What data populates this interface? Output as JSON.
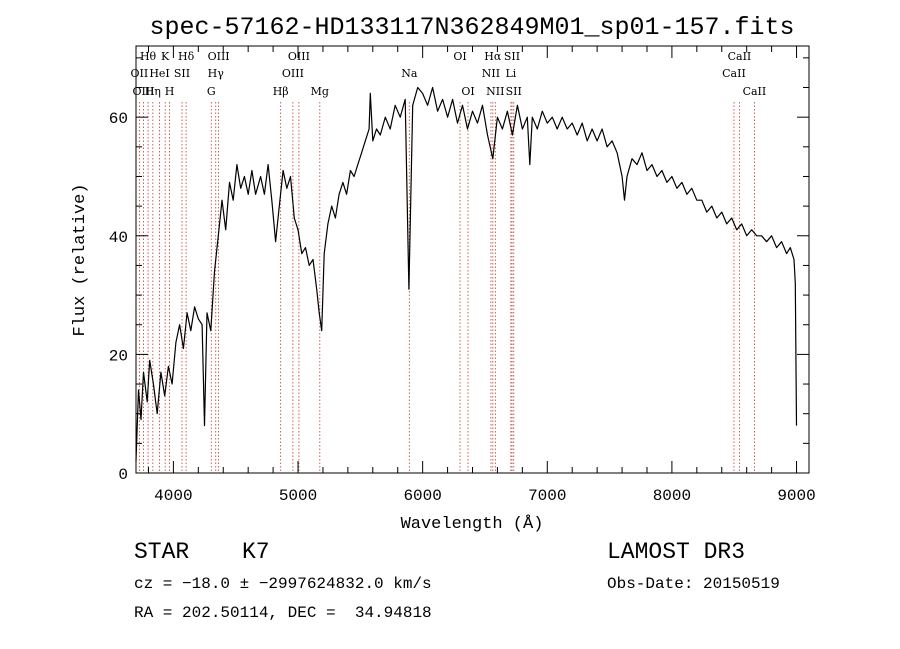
{
  "chart_data": {
    "type": "line",
    "title": "spec-57162-HD133117N362849M01_sp01-157.fits",
    "xlabel": "Wavelength (Å)",
    "ylabel": "Flux (relative)",
    "xlim": [
      3700,
      9100
    ],
    "ylim": [
      0,
      72
    ],
    "xticks": [
      4000,
      5000,
      6000,
      7000,
      8000,
      9000
    ],
    "yticks": [
      0,
      20,
      40,
      60
    ],
    "grid": false,
    "series": [
      {
        "points": [
          [
            3700,
            2
          ],
          [
            3720,
            14
          ],
          [
            3740,
            9
          ],
          [
            3760,
            17
          ],
          [
            3790,
            12
          ],
          [
            3810,
            19
          ],
          [
            3840,
            15
          ],
          [
            3870,
            10
          ],
          [
            3900,
            17
          ],
          [
            3930,
            13
          ],
          [
            3960,
            18
          ],
          [
            3990,
            15
          ],
          [
            4020,
            22
          ],
          [
            4050,
            25
          ],
          [
            4080,
            21
          ],
          [
            4110,
            27
          ],
          [
            4140,
            24
          ],
          [
            4170,
            28
          ],
          [
            4200,
            26
          ],
          [
            4230,
            25
          ],
          [
            4250,
            8
          ],
          [
            4270,
            27
          ],
          [
            4300,
            24
          ],
          [
            4330,
            34
          ],
          [
            4360,
            40
          ],
          [
            4390,
            46
          ],
          [
            4420,
            41
          ],
          [
            4450,
            49
          ],
          [
            4480,
            46
          ],
          [
            4510,
            52
          ],
          [
            4540,
            48
          ],
          [
            4570,
            50
          ],
          [
            4600,
            47
          ],
          [
            4630,
            51
          ],
          [
            4660,
            47
          ],
          [
            4700,
            50
          ],
          [
            4730,
            47
          ],
          [
            4760,
            52
          ],
          [
            4790,
            46
          ],
          [
            4820,
            39
          ],
          [
            4850,
            45
          ],
          [
            4880,
            51
          ],
          [
            4910,
            48
          ],
          [
            4940,
            50
          ],
          [
            4970,
            43
          ],
          [
            5000,
            41
          ],
          [
            5030,
            37
          ],
          [
            5060,
            38
          ],
          [
            5090,
            35
          ],
          [
            5120,
            36
          ],
          [
            5150,
            31
          ],
          [
            5170,
            27
          ],
          [
            5190,
            24
          ],
          [
            5210,
            37
          ],
          [
            5240,
            42
          ],
          [
            5270,
            45
          ],
          [
            5300,
            43
          ],
          [
            5330,
            47
          ],
          [
            5360,
            49
          ],
          [
            5390,
            47
          ],
          [
            5420,
            51
          ],
          [
            5450,
            50
          ],
          [
            5480,
            52
          ],
          [
            5510,
            54
          ],
          [
            5540,
            56
          ],
          [
            5570,
            58
          ],
          [
            5580,
            64
          ],
          [
            5600,
            56
          ],
          [
            5630,
            58
          ],
          [
            5660,
            57
          ],
          [
            5700,
            60
          ],
          [
            5740,
            58
          ],
          [
            5780,
            62
          ],
          [
            5820,
            60
          ],
          [
            5860,
            63
          ],
          [
            5890,
            31
          ],
          [
            5920,
            62
          ],
          [
            5960,
            65
          ],
          [
            6000,
            64
          ],
          [
            6040,
            62
          ],
          [
            6080,
            65
          ],
          [
            6120,
            61
          ],
          [
            6160,
            63
          ],
          [
            6200,
            60
          ],
          [
            6240,
            63
          ],
          [
            6280,
            59
          ],
          [
            6320,
            62
          ],
          [
            6360,
            58
          ],
          [
            6400,
            61
          ],
          [
            6440,
            59
          ],
          [
            6480,
            62
          ],
          [
            6520,
            57
          ],
          [
            6563,
            53
          ],
          [
            6600,
            60
          ],
          [
            6640,
            58
          ],
          [
            6680,
            61
          ],
          [
            6720,
            57
          ],
          [
            6760,
            62
          ],
          [
            6800,
            58
          ],
          [
            6840,
            60
          ],
          [
            6860,
            52
          ],
          [
            6880,
            60
          ],
          [
            6920,
            58
          ],
          [
            6960,
            61
          ],
          [
            7000,
            59
          ],
          [
            7040,
            60
          ],
          [
            7080,
            58
          ],
          [
            7120,
            60
          ],
          [
            7160,
            58
          ],
          [
            7200,
            59
          ],
          [
            7240,
            57
          ],
          [
            7280,
            59
          ],
          [
            7320,
            56
          ],
          [
            7360,
            58
          ],
          [
            7400,
            56
          ],
          [
            7440,
            58
          ],
          [
            7480,
            55
          ],
          [
            7520,
            56
          ],
          [
            7560,
            54
          ],
          [
            7600,
            50
          ],
          [
            7620,
            46
          ],
          [
            7640,
            50
          ],
          [
            7680,
            53
          ],
          [
            7720,
            52
          ],
          [
            7760,
            54
          ],
          [
            7800,
            51
          ],
          [
            7840,
            52
          ],
          [
            7880,
            50
          ],
          [
            7920,
            51
          ],
          [
            7960,
            49
          ],
          [
            8000,
            50
          ],
          [
            8040,
            48
          ],
          [
            8080,
            49
          ],
          [
            8120,
            47
          ],
          [
            8160,
            48
          ],
          [
            8200,
            46
          ],
          [
            8240,
            46
          ],
          [
            8280,
            44
          ],
          [
            8320,
            45
          ],
          [
            8360,
            43
          ],
          [
            8400,
            44
          ],
          [
            8440,
            42
          ],
          [
            8480,
            43
          ],
          [
            8520,
            41
          ],
          [
            8560,
            42
          ],
          [
            8600,
            40
          ],
          [
            8640,
            41
          ],
          [
            8680,
            40
          ],
          [
            8720,
            40
          ],
          [
            8760,
            39
          ],
          [
            8800,
            40
          ],
          [
            8840,
            38
          ],
          [
            8880,
            39
          ],
          [
            8920,
            37
          ],
          [
            8950,
            38
          ],
          [
            8980,
            36
          ],
          [
            8990,
            32
          ],
          [
            9000,
            8
          ]
        ]
      }
    ],
    "lines": [
      {
        "x": 3727,
        "label": "OII",
        "tier": 1
      },
      {
        "x": 3760,
        "label": "OIII",
        "tier": 2
      },
      {
        "x": 3797,
        "label": "Hθ",
        "tier": 0
      },
      {
        "x": 3835,
        "label": "Hη",
        "tier": 2
      },
      {
        "x": 3889,
        "label": "HeI",
        "tier": 1
      },
      {
        "x": 3934,
        "label": "K",
        "tier": 0
      },
      {
        "x": 3969,
        "label": "H",
        "tier": 2
      },
      {
        "x": 4069,
        "label": "SII",
        "tier": 1
      },
      {
        "x": 4102,
        "label": "Hδ",
        "tier": 0
      },
      {
        "x": 4304,
        "label": "G",
        "tier": 2
      },
      {
        "x": 4340,
        "label": "Hγ",
        "tier": 1
      },
      {
        "x": 4363,
        "label": "OIII",
        "tier": 0
      },
      {
        "x": 4861,
        "label": "Hβ",
        "tier": 2
      },
      {
        "x": 4959,
        "label": "OIII",
        "tier": 1
      },
      {
        "x": 5007,
        "label": "OIII",
        "tier": 0
      },
      {
        "x": 5175,
        "label": "Mg",
        "tier": 2
      },
      {
        "x": 5893,
        "label": "Na",
        "tier": 1
      },
      {
        "x": 6300,
        "label": "OI",
        "tier": 0
      },
      {
        "x": 6364,
        "label": "OI",
        "tier": 2
      },
      {
        "x": 6548,
        "label": "NII",
        "tier": 1
      },
      {
        "x": 6563,
        "label": "Hα",
        "tier": 0
      },
      {
        "x": 6583,
        "label": "NII",
        "tier": 2
      },
      {
        "x": 6708,
        "label": "Li",
        "tier": 1
      },
      {
        "x": 6717,
        "label": "SII",
        "tier": 0
      },
      {
        "x": 6731,
        "label": "SII",
        "tier": 2
      },
      {
        "x": 8498,
        "label": "CaII",
        "tier": 1
      },
      {
        "x": 8542,
        "label": "CaII",
        "tier": 0
      },
      {
        "x": 8662,
        "label": "CaII",
        "tier": 2
      }
    ]
  },
  "info": {
    "class": "STAR",
    "subclass": "K7",
    "survey": "LAMOST DR3",
    "cz": "cz = −18.0 ± −2997624832.0 km/s",
    "obs_date": "Obs-Date: 20150519",
    "radec": "RA = 202.50114, DEC =  34.94818"
  }
}
